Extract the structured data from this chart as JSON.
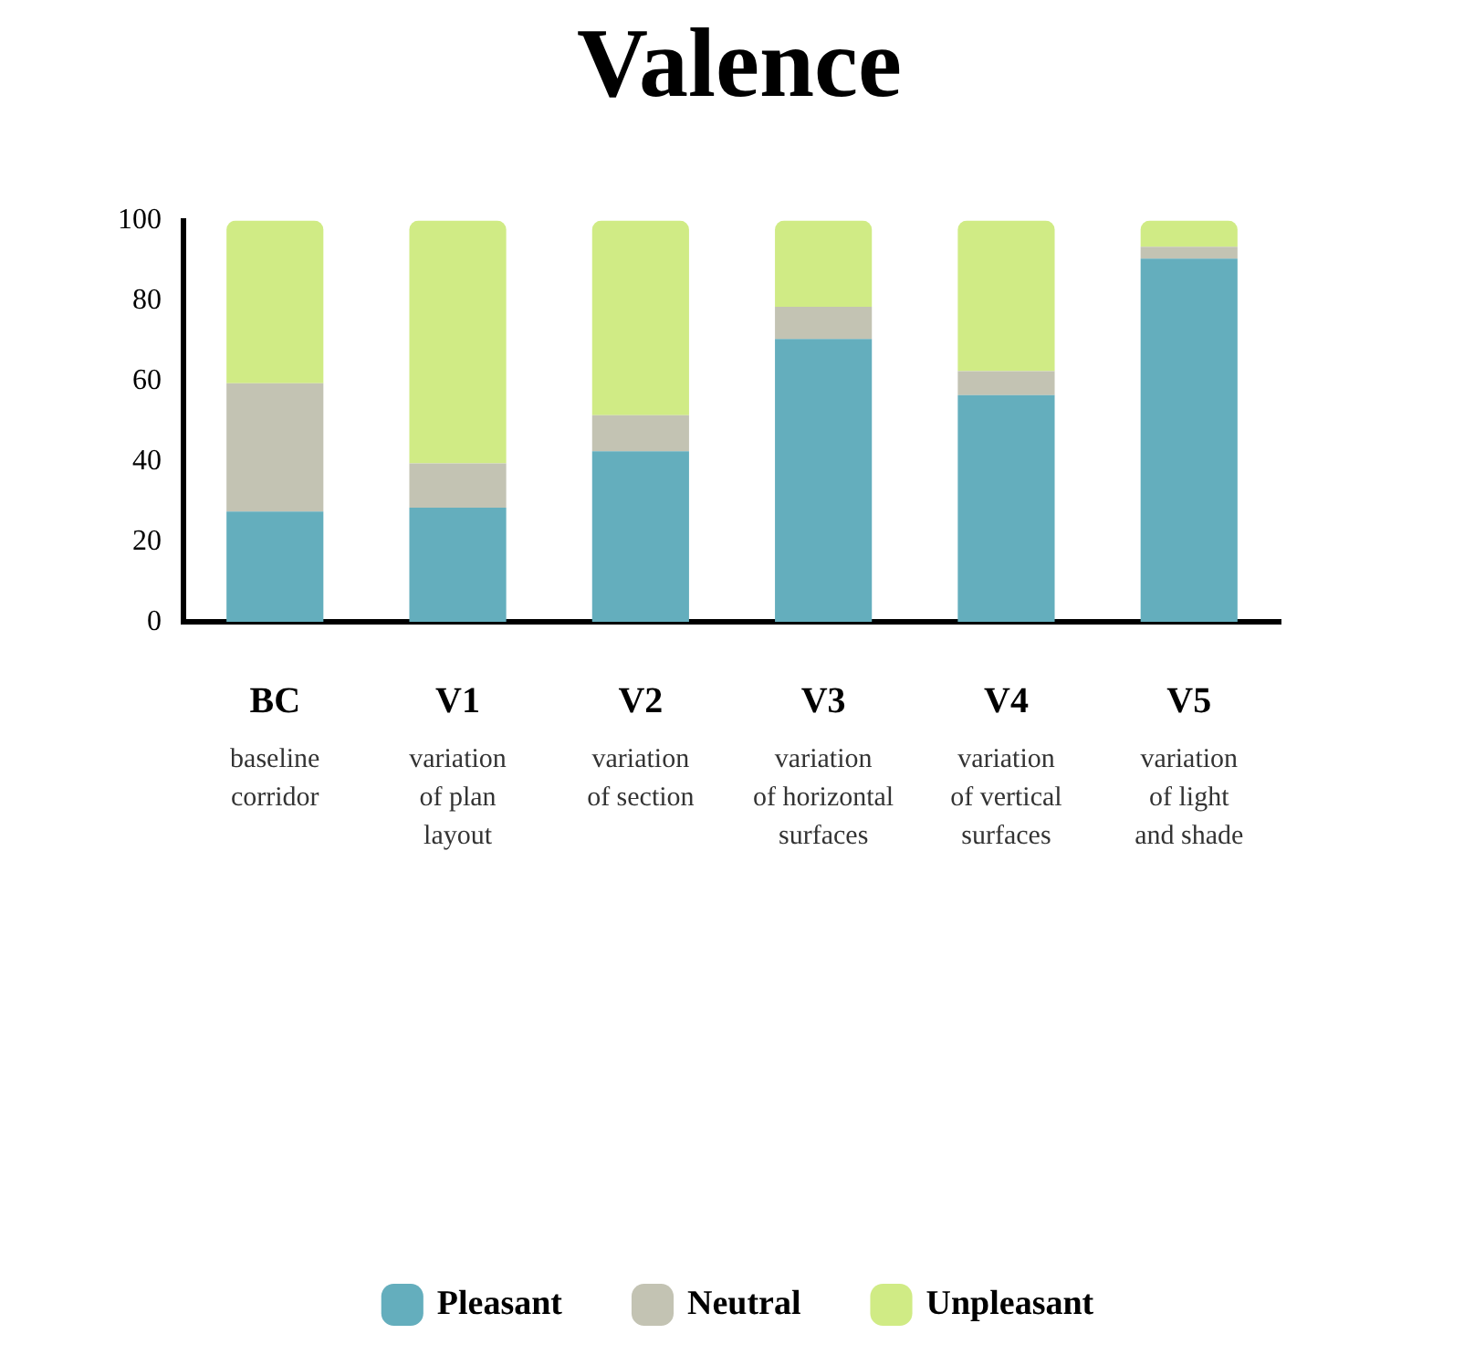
{
  "chart_data": {
    "type": "bar",
    "title": "Valence",
    "stacked": true,
    "categories": [
      "BC\nbaseline\ncorridor",
      "V1\nvariation\nof plan\nlayout",
      "V2\nvariation\nof section",
      "V3\nvariation\nof horizontal\nsurfaces",
      "V4\nvariation\nof vertical\nsurfaces",
      "V5\nvariation\nof light\nand shade"
    ],
    "series": [
      {
        "name": "Pleasant",
        "color": "#64aebd",
        "values": [
          27.5,
          28.5,
          42.5,
          70.5,
          56.5,
          90.5
        ]
      },
      {
        "name": "Neutral",
        "color": "#c3c3b3",
        "values": [
          32,
          11,
          9,
          8,
          6,
          3
        ]
      },
      {
        "name": "Unpleasant",
        "color": "#d0eb85",
        "values": [
          40.5,
          60.5,
          48.5,
          21.5,
          37.5,
          6.5
        ]
      }
    ],
    "ylim": [
      0,
      100
    ],
    "yticks": [
      0,
      20,
      40,
      60,
      80,
      100
    ],
    "grid": false,
    "legend": "bottom"
  }
}
